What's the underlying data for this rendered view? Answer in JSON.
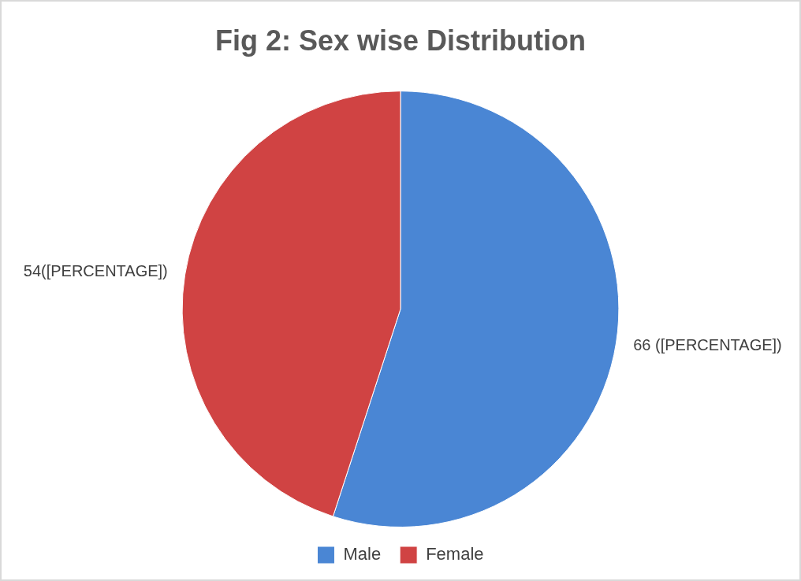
{
  "chart_data": {
    "type": "pie",
    "title": "Fig 2: Sex wise Distribution",
    "categories": [
      "Male",
      "Female"
    ],
    "values": [
      66,
      54
    ],
    "colors": [
      "#4a86d4",
      "#d04343"
    ],
    "value_labels": [
      "66 ([PERCENTAGE])",
      "54([PERCENTAGE])"
    ],
    "legend": "bottom"
  }
}
